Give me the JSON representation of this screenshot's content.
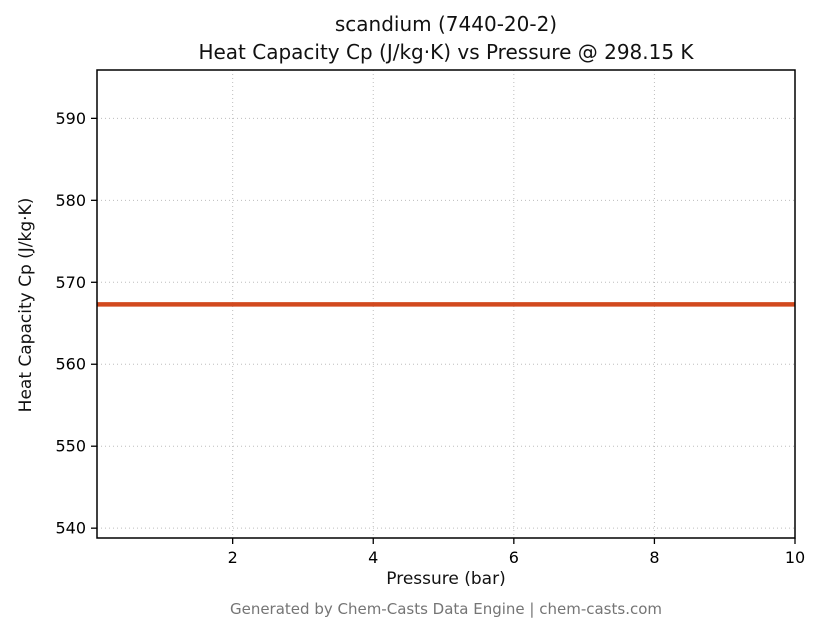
{
  "chart_data": {
    "type": "line",
    "title_line1": "scandium (7440-20-2)",
    "title_line2": "Heat Capacity Cp (J/kg·K) vs Pressure @ 298.15 K",
    "xlabel": "Pressure (bar)",
    "ylabel": "Heat Capacity Cp (J/kg·K)",
    "footer": "Generated by Chem-Casts Data Engine | chem-casts.com",
    "x_ticks": [
      2,
      4,
      6,
      8,
      10
    ],
    "y_ticks": [
      540,
      550,
      560,
      570,
      580,
      590
    ],
    "xlim": [
      0.07,
      10
    ],
    "ylim": [
      538.8,
      595.9
    ],
    "grid": "dotted",
    "line_width": 4.5,
    "series": [
      {
        "name": "Heat Capacity Cp",
        "color": "#d2491e",
        "x": [
          0.07,
          10
        ],
        "y": [
          567.3,
          567.3
        ]
      }
    ]
  }
}
